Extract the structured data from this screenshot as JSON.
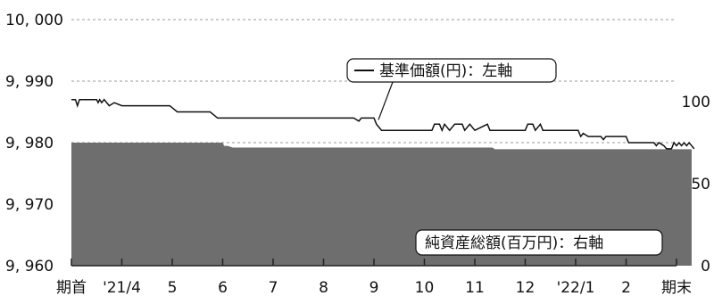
{
  "chart_data": {
    "type": "area",
    "x_ticks": [
      "期首",
      "'21/4",
      "5",
      "6",
      "7",
      "8",
      "9",
      "10",
      "11",
      "12",
      "'22/1",
      "2",
      "期末"
    ],
    "left_axis": {
      "ticks": [
        "10, 000",
        "9, 990",
        "9, 980",
        "9, 970",
        "9, 960"
      ],
      "range": [
        9960,
        10000
      ]
    },
    "right_axis": {
      "ticks": [
        "100",
        "50",
        "0"
      ],
      "range": [
        0,
        150
      ]
    },
    "grid": true,
    "series": [
      {
        "name": "基準価額(円)：左軸",
        "type": "line",
        "axis": "left",
        "color": "#111111",
        "values": [
          [
            0,
            9987
          ],
          [
            0.08,
            9987
          ],
          [
            0.12,
            9986
          ],
          [
            0.16,
            9987
          ],
          [
            0.5,
            9987
          ],
          [
            0.53,
            9986.5
          ],
          [
            0.56,
            9987
          ],
          [
            0.6,
            9986.5
          ],
          [
            0.65,
            9987
          ],
          [
            0.75,
            9986
          ],
          [
            0.85,
            9986.5
          ],
          [
            1.0,
            9986
          ],
          [
            1.2,
            9986
          ],
          [
            1.95,
            9986
          ],
          [
            2.1,
            9985
          ],
          [
            2.75,
            9985
          ],
          [
            2.9,
            9984
          ],
          [
            5.6,
            9984
          ],
          [
            5.7,
            9983.5
          ],
          [
            5.75,
            9984
          ],
          [
            6.0,
            9984
          ],
          [
            6.05,
            9983
          ],
          [
            6.1,
            9982.5
          ],
          [
            6.15,
            9982
          ],
          [
            7.15,
            9982
          ],
          [
            7.2,
            9983
          ],
          [
            7.3,
            9983
          ],
          [
            7.35,
            9982
          ],
          [
            7.4,
            9983
          ],
          [
            7.5,
            9982
          ],
          [
            7.6,
            9983
          ],
          [
            7.75,
            9983
          ],
          [
            7.8,
            9982
          ],
          [
            7.9,
            9983
          ],
          [
            8.0,
            9982
          ],
          [
            8.25,
            9983
          ],
          [
            8.3,
            9982
          ],
          [
            9.0,
            9982
          ],
          [
            9.05,
            9983
          ],
          [
            9.15,
            9983
          ],
          [
            9.2,
            9982
          ],
          [
            9.3,
            9983
          ],
          [
            9.35,
            9982
          ],
          [
            10.05,
            9982
          ],
          [
            10.1,
            9981
          ],
          [
            10.15,
            9981.5
          ],
          [
            10.25,
            9981
          ],
          [
            10.5,
            9981
          ],
          [
            10.55,
            9980.5
          ],
          [
            10.6,
            9981
          ],
          [
            11.0,
            9981
          ],
          [
            11.05,
            9980
          ],
          [
            11.55,
            9980
          ],
          [
            11.6,
            9979.5
          ],
          [
            11.65,
            9980
          ],
          [
            11.75,
            9979.5
          ],
          [
            11.8,
            9979
          ],
          [
            11.9,
            9979
          ],
          [
            11.95,
            9980
          ],
          [
            12.0,
            9979.5
          ],
          [
            12.05,
            9980
          ],
          [
            12.1,
            9979.5
          ],
          [
            12.15,
            9980
          ],
          [
            12.2,
            9979.5
          ],
          [
            12.25,
            9980
          ],
          [
            12.3,
            9979.5
          ],
          [
            12.35,
            9979
          ]
        ]
      },
      {
        "name": "純資産総額(百万円)：右軸",
        "type": "area",
        "axis": "right",
        "color": "#6e6e6e",
        "values": [
          [
            0,
            75
          ],
          [
            3.0,
            75
          ],
          [
            3.03,
            73
          ],
          [
            3.1,
            73
          ],
          [
            3.2,
            72
          ],
          [
            8.35,
            72
          ],
          [
            8.4,
            71
          ],
          [
            12.3,
            71
          ]
        ]
      }
    ],
    "annotations": [
      {
        "text": "基準価額(円)：左軸",
        "target_series": 0
      },
      {
        "text": "純資産総額(百万円)：右軸",
        "target_series": 1
      }
    ]
  }
}
